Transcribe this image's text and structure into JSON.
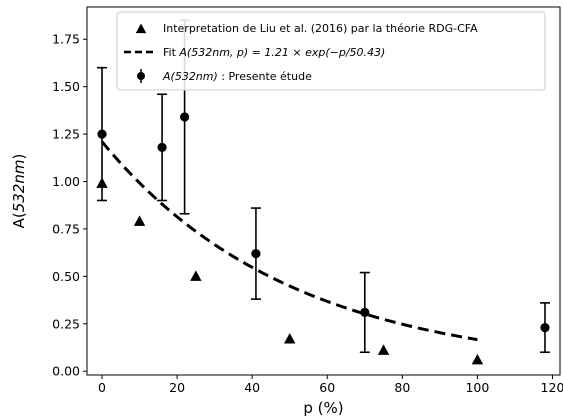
{
  "chart_data": {
    "type": "scatter",
    "xlabel": "p (%)",
    "ylabel_prefix": "A(",
    "ylabel_italic": "532nm",
    "ylabel_suffix": ")",
    "xlim": [
      -4,
      122
    ],
    "ylim": [
      -0.02,
      1.92
    ],
    "xticks": [
      0,
      20,
      40,
      60,
      80,
      100,
      120
    ],
    "xtick_labels": [
      "0",
      "20",
      "40",
      "60",
      "80",
      "100",
      "120"
    ],
    "yticks": [
      0.0,
      0.25,
      0.5,
      0.75,
      1.0,
      1.25,
      1.5,
      1.75
    ],
    "ytick_labels": [
      "0.00",
      "0.25",
      "0.50",
      "0.75",
      "1.00",
      "1.25",
      "1.50",
      "1.75"
    ],
    "grid": false,
    "legend_position": "top-right",
    "series": [
      {
        "name": "Interpretation de Liu et al. (2016) par la théorie RDG-CFA",
        "marker": "triangle",
        "color": "#000000",
        "x": [
          0,
          10,
          25,
          50,
          75,
          100
        ],
        "y": [
          0.99,
          0.79,
          0.5,
          0.17,
          0.11,
          0.06
        ]
      },
      {
        "name_prefix": "Fit ",
        "name_math": "A(532nm, p) = 1.21 × exp(−p/50.43)",
        "marker": "dashed-line",
        "color": "#000000",
        "a": 1.21,
        "b": 50.43,
        "x_range": [
          0,
          100
        ]
      },
      {
        "name_italic": "A(532nm)",
        "name_suffix": " : Presente étude",
        "marker": "circle-errorbar",
        "color": "#000000",
        "x": [
          0,
          16,
          22,
          41,
          70,
          118
        ],
        "y": [
          1.25,
          1.18,
          1.34,
          0.62,
          0.31,
          0.23
        ],
        "err_low": [
          0.35,
          0.28,
          0.51,
          0.24,
          0.21,
          0.13
        ],
        "err_high": [
          0.35,
          0.28,
          0.51,
          0.24,
          0.21,
          0.13
        ]
      }
    ]
  }
}
